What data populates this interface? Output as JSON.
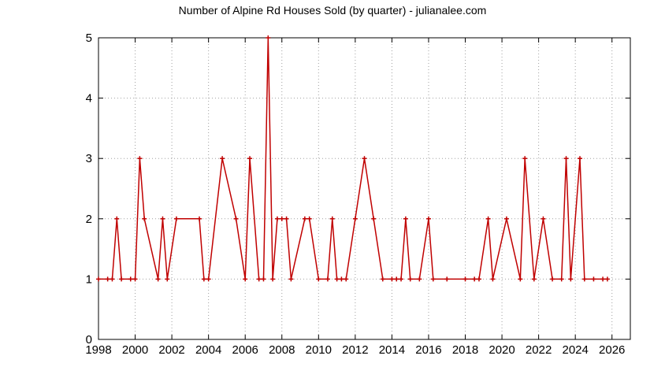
{
  "chart_data": {
    "type": "line",
    "title": "Number of Alpine Rd Houses Sold (by quarter) - julianalee.com",
    "xlabel": "",
    "ylabel": "",
    "xlim": [
      1998,
      2027
    ],
    "ylim": [
      0,
      5
    ],
    "x_ticks": [
      1998,
      2000,
      2002,
      2004,
      2006,
      2008,
      2010,
      2012,
      2014,
      2016,
      2018,
      2020,
      2022,
      2024,
      2026
    ],
    "y_ticks": [
      0,
      1,
      2,
      3,
      4,
      5
    ],
    "grid": true,
    "legend": "none",
    "colors": {
      "series": "#c00000"
    },
    "series": [
      {
        "x": [
          1998.0,
          1998.5,
          1998.75,
          1999.0,
          1999.25,
          1999.75,
          2000.0,
          2000.25,
          2000.5,
          2001.25,
          2001.5,
          2001.75,
          2002.25,
          2003.5,
          2003.75,
          2004.0,
          2004.75,
          2005.5,
          2006.0,
          2006.25,
          2006.75,
          2007.0,
          2007.25,
          2007.5,
          2007.75,
          2008.0,
          2008.25,
          2008.5,
          2009.25,
          2009.5,
          2010.0,
          2010.5,
          2010.75,
          2011.0,
          2011.25,
          2011.5,
          2012.0,
          2012.5,
          2013.0,
          2013.5,
          2014.0,
          2014.25,
          2014.5,
          2014.75,
          2015.0,
          2015.5,
          2016.0,
          2016.25,
          2017.0,
          2018.0,
          2018.5,
          2018.75,
          2019.25,
          2019.5,
          2020.25,
          2021.0,
          2021.25,
          2021.75,
          2022.25,
          2022.75,
          2023.25,
          2023.5,
          2023.75,
          2024.25,
          2024.5,
          2025.0,
          2025.5,
          2025.75
        ],
        "values": [
          1,
          1,
          1,
          2,
          1,
          1,
          1,
          3,
          2,
          1,
          2,
          1,
          2,
          2,
          1,
          1,
          3,
          2,
          1,
          3,
          1,
          1,
          5,
          1,
          2,
          2,
          2,
          1,
          2,
          2,
          1,
          1,
          2,
          1,
          1,
          1,
          2,
          3,
          2,
          1,
          1,
          1,
          1,
          2,
          1,
          1,
          2,
          1,
          1,
          1,
          1,
          1,
          2,
          1,
          2,
          1,
          3,
          1,
          2,
          1,
          1,
          3,
          1,
          3,
          1,
          1,
          1,
          1
        ]
      }
    ]
  }
}
